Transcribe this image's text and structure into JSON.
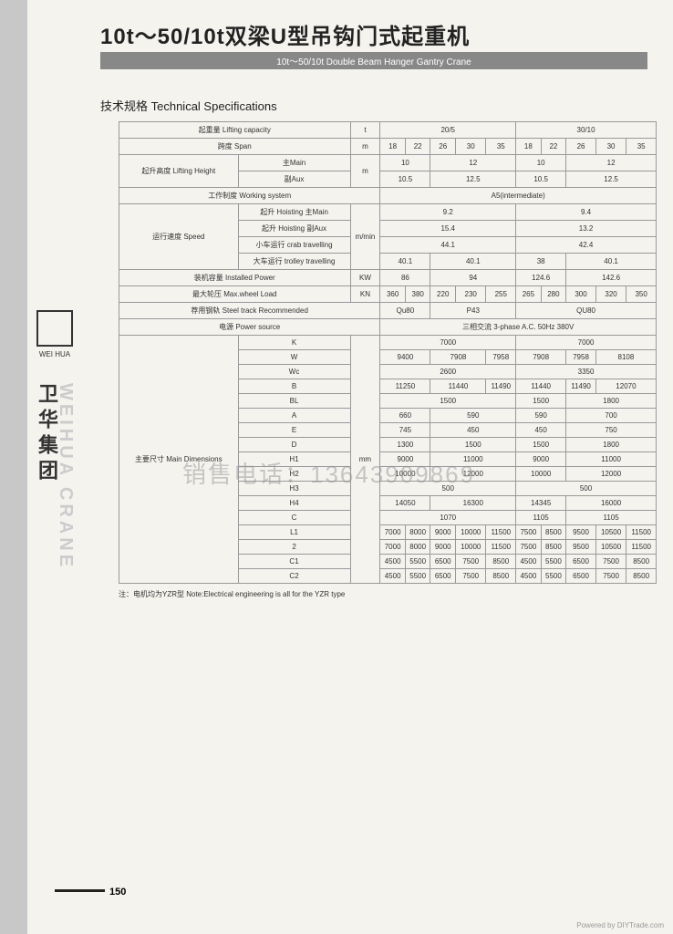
{
  "title_cn": "10t～50/10t双梁U型吊钩门式起重机",
  "title_en": "10t～50/10t Double Beam Hanger Gantry Crane",
  "subtitle": "技术规格 Technical Specifications",
  "logo_name": "WEI HUA",
  "side_cn": "卫华集团",
  "side_en": "WEIHUA CRANE",
  "watermark": "销售电话：13643909869",
  "page_num": "150",
  "note": "注：电机均为YZR型 Note:Electrical engineering is all for the YZR type",
  "footer": "Powered by DIYTrade.com",
  "r": {
    "lifting": "起重量 Lifting capacity",
    "lifting_u": "t",
    "lifting_v": [
      "20/5",
      "30/10"
    ],
    "span": "跨度 Span",
    "span_u": "m",
    "span_v": [
      "18",
      "22",
      "26",
      "30",
      "35",
      "18",
      "22",
      "26",
      "30",
      "35"
    ],
    "height": "起升高度 Lifting Height",
    "main": "主Main",
    "aux": "副Aux",
    "height_u": "m",
    "hm": [
      "10",
      "12",
      "10",
      "12"
    ],
    "ha": [
      "10.5",
      "12.5",
      "10.5",
      "12.5"
    ],
    "work": "工作制度 Working system",
    "work_v": "A5(intermediate)",
    "speed": "运行速度 Speed",
    "hoist": "起升 Hoisting",
    "crab": "小车运行 crab travelling",
    "trolley": "大车运行 trolley travelling",
    "speed_u": "m/min",
    "hm_s": [
      "9.2",
      "9.4"
    ],
    "ha_s": [
      "15.4",
      "13.2"
    ],
    "crab_v": [
      "44.1",
      "42.4"
    ],
    "trolley_v": [
      "40.1",
      "40.1",
      "38",
      "40.1"
    ],
    "power": "装机容量 Installed Power",
    "power_u": "KW",
    "power_v": [
      "86",
      "94",
      "124.6",
      "142.6"
    ],
    "wheel": "最大轮压 Max.wheel Load",
    "wheel_u": "KN",
    "wheel_v": [
      "360",
      "380",
      "220",
      "230",
      "255",
      "265",
      "280",
      "300",
      "320",
      "350"
    ],
    "track": "荐用钢轨 Steel track Recommended",
    "track_v": [
      "Qu80",
      "P43",
      "QU80"
    ],
    "ps": "电源 Power source",
    "ps_v": "三相交流 3-phase A.C. 50Hz 380V",
    "dims": "主要尺寸 Main Dimensions",
    "dims_u": "mm",
    "K": [
      "7000",
      "7000"
    ],
    "W": [
      "9400",
      "7908",
      "7958",
      "7908",
      "7958",
      "8108"
    ],
    "Wc": [
      "2600",
      "3350"
    ],
    "B": [
      "11250",
      "11440",
      "11490",
      "11440",
      "11490",
      "12070"
    ],
    "BL": [
      "1500",
      "1500",
      "1800"
    ],
    "A": [
      "660",
      "590",
      "590",
      "700"
    ],
    "E": [
      "745",
      "450",
      "450",
      "750"
    ],
    "D": [
      "1300",
      "1500",
      "1500",
      "1800"
    ],
    "H1": [
      "9000",
      "11000",
      "9000",
      "11000"
    ],
    "H2": [
      "10000",
      "12000",
      "10000",
      "12000"
    ],
    "H3": [
      "500",
      "500"
    ],
    "H4": [
      "14050",
      "16300",
      "14345",
      "16000"
    ],
    "C": [
      "1070",
      "1105",
      "1105"
    ],
    "L1": [
      "7000",
      "8000",
      "9000",
      "10000",
      "11500",
      "7500",
      "8500",
      "9500",
      "10500",
      "11500"
    ],
    "2": [
      "7000",
      "8000",
      "9000",
      "10000",
      "11500",
      "7500",
      "8500",
      "9500",
      "10500",
      "11500"
    ],
    "C1": [
      "4500",
      "5500",
      "6500",
      "7500",
      "8500",
      "4500",
      "5500",
      "6500",
      "7500",
      "8500"
    ],
    "C2": [
      "4500",
      "5500",
      "6500",
      "7500",
      "8500",
      "4500",
      "5500",
      "6500",
      "7500",
      "8500"
    ]
  }
}
